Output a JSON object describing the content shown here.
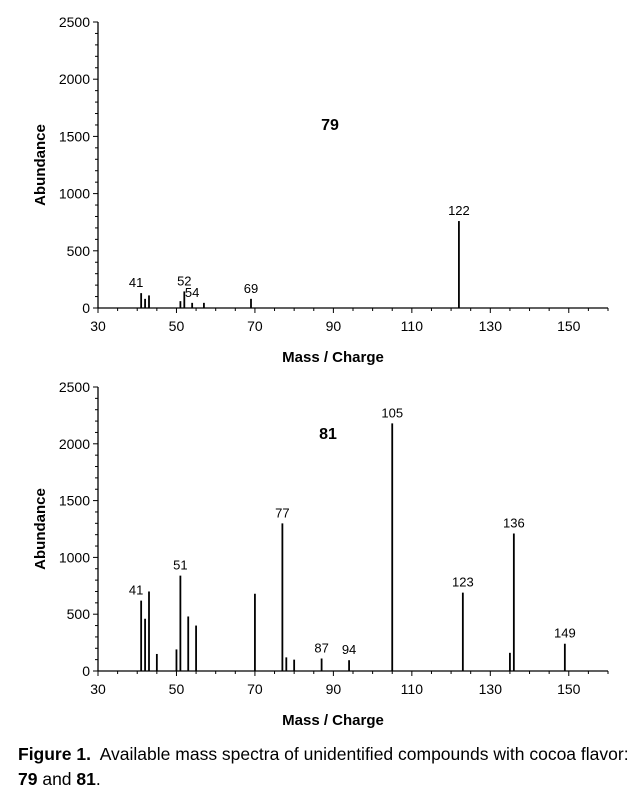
{
  "chart_data": [
    {
      "type": "bar",
      "title": "79",
      "xlabel": "Mass / Charge",
      "ylabel": "Abundance",
      "xlim": [
        30,
        160
      ],
      "ylim": [
        0,
        2500
      ],
      "xticks": [
        30,
        50,
        70,
        90,
        110,
        130,
        150
      ],
      "yticks": [
        0,
        500,
        1000,
        1500,
        2000,
        2500
      ],
      "peaks": [
        {
          "mz": 41,
          "abundance": 130,
          "label": "41"
        },
        {
          "mz": 42,
          "abundance": 80
        },
        {
          "mz": 43,
          "abundance": 110
        },
        {
          "mz": 51,
          "abundance": 60
        },
        {
          "mz": 52,
          "abundance": 145,
          "label": "52"
        },
        {
          "mz": 54,
          "abundance": 45,
          "label": "54"
        },
        {
          "mz": 57,
          "abundance": 45
        },
        {
          "mz": 69,
          "abundance": 80,
          "label": "69"
        },
        {
          "mz": 122,
          "abundance": 760,
          "label": "122"
        }
      ]
    },
    {
      "type": "bar",
      "title": "81",
      "xlabel": "Mass / Charge",
      "ylabel": "Abundance",
      "xlim": [
        30,
        160
      ],
      "ylim": [
        0,
        2500
      ],
      "xticks": [
        30,
        50,
        70,
        90,
        110,
        130,
        150
      ],
      "yticks": [
        0,
        500,
        1000,
        1500,
        2000,
        2500
      ],
      "peaks": [
        {
          "mz": 41,
          "abundance": 620,
          "label": "41"
        },
        {
          "mz": 42,
          "abundance": 460
        },
        {
          "mz": 43,
          "abundance": 700
        },
        {
          "mz": 45,
          "abundance": 150
        },
        {
          "mz": 50,
          "abundance": 190
        },
        {
          "mz": 51,
          "abundance": 840,
          "label": "51"
        },
        {
          "mz": 53,
          "abundance": 480
        },
        {
          "mz": 55,
          "abundance": 400
        },
        {
          "mz": 70,
          "abundance": 680
        },
        {
          "mz": 77,
          "abundance": 1300,
          "label": "77"
        },
        {
          "mz": 78,
          "abundance": 120
        },
        {
          "mz": 80,
          "abundance": 100
        },
        {
          "mz": 87,
          "abundance": 110,
          "label": "87"
        },
        {
          "mz": 94,
          "abundance": 95,
          "label": "94"
        },
        {
          "mz": 105,
          "abundance": 2180,
          "label": "105"
        },
        {
          "mz": 123,
          "abundance": 690,
          "label": "123"
        },
        {
          "mz": 135,
          "abundance": 160
        },
        {
          "mz": 136,
          "abundance": 1210,
          "label": "136"
        },
        {
          "mz": 149,
          "abundance": 240,
          "label": "149"
        }
      ]
    }
  ],
  "caption": {
    "label": "Figure 1.",
    "text1": "  Available mass spectra of unidentified compounds with cocoa flavor: ",
    "c1": "79",
    "and": " and ",
    "c2": "81",
    "end": "."
  }
}
